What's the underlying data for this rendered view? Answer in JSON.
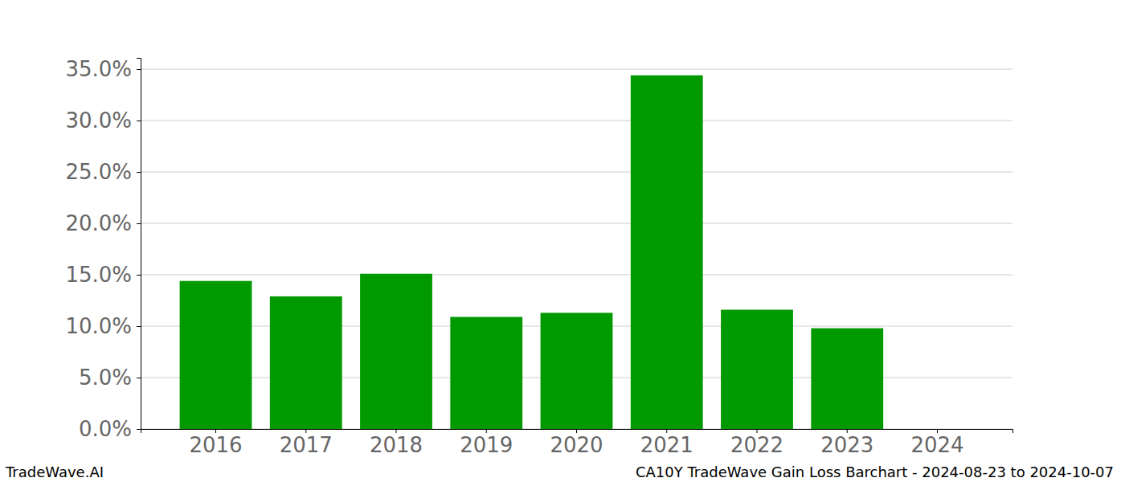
{
  "chart_data": {
    "type": "bar",
    "title": "CA10Y TradeWave Gain Loss Barchart - 2024-08-23 to 2024-10-07",
    "credit": "TradeWave.AI",
    "categories": [
      "2016",
      "2017",
      "2018",
      "2019",
      "2020",
      "2021",
      "2022",
      "2023",
      "2024"
    ],
    "values": [
      14.4,
      12.9,
      15.1,
      10.9,
      11.3,
      34.4,
      11.6,
      9.8,
      0
    ],
    "color": "#009900",
    "ylim": [
      0,
      36.1
    ],
    "yticks": [
      {
        "value": 0,
        "label": "0.0%"
      },
      {
        "value": 5,
        "label": "5.0%"
      },
      {
        "value": 10,
        "label": "10.0%"
      },
      {
        "value": 15,
        "label": "15.0%"
      },
      {
        "value": 20,
        "label": "20.0%"
      },
      {
        "value": 25,
        "label": "25.0%"
      },
      {
        "value": 30,
        "label": "30.0%"
      },
      {
        "value": 35,
        "label": "35.0%"
      }
    ],
    "grid": true
  }
}
